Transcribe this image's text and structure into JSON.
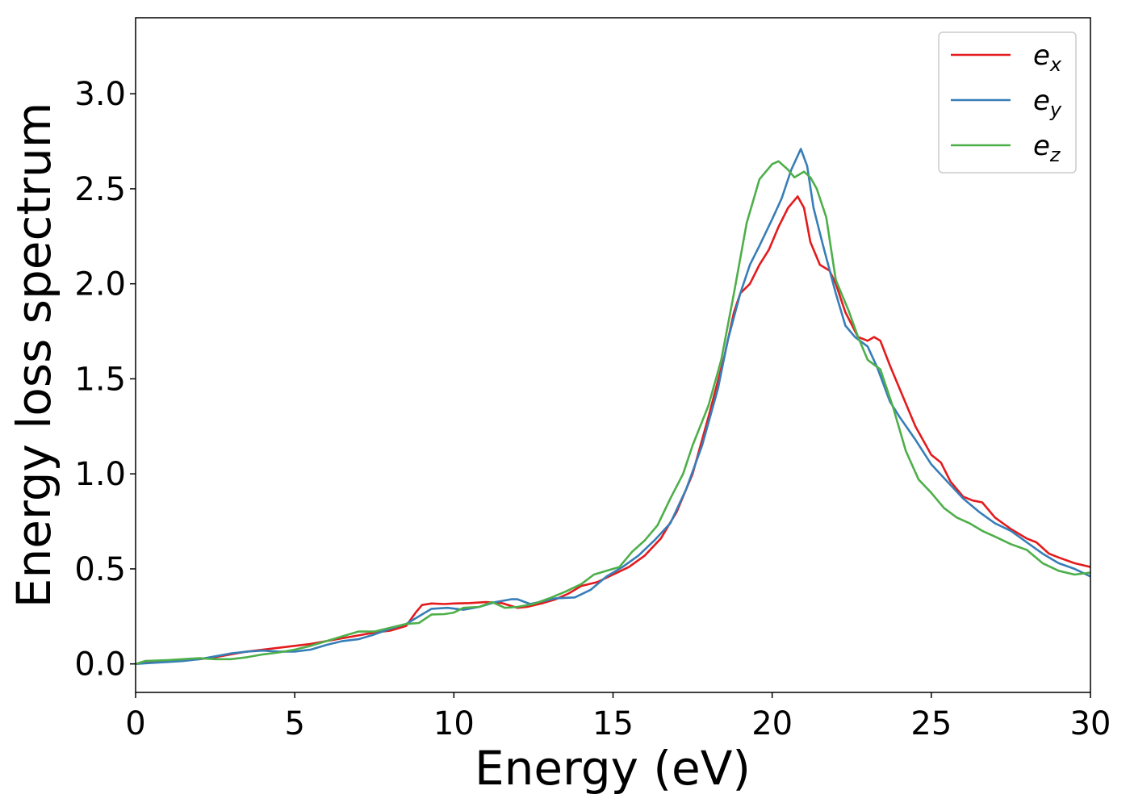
{
  "chart_data": {
    "type": "line",
    "title": "",
    "xlabel": "Energy (eV)",
    "ylabel": "Energy loss spectrum",
    "xlim": [
      0,
      30
    ],
    "ylim": [
      -0.15,
      3.4
    ],
    "xticks": [
      0,
      5,
      10,
      15,
      20,
      25,
      30
    ],
    "xtick_labels": [
      "0",
      "5",
      "10",
      "15",
      "20",
      "25",
      "30"
    ],
    "yticks": [
      0.0,
      0.5,
      1.0,
      1.5,
      2.0,
      2.5,
      3.0
    ],
    "ytick_labels": [
      "0.0",
      "0.5",
      "1.0",
      "1.5",
      "2.0",
      "2.5",
      "3.0"
    ],
    "grid": false,
    "legend_position": "top-right",
    "series": [
      {
        "name": "e",
        "subscript": "x",
        "color": "#e41a1c",
        "points": [
          [
            0,
            0
          ],
          [
            0.5,
            0.01
          ],
          [
            1,
            0.015
          ],
          [
            1.5,
            0.02
          ],
          [
            2,
            0.025
          ],
          [
            2.5,
            0.035
          ],
          [
            3,
            0.05
          ],
          [
            3.5,
            0.065
          ],
          [
            4,
            0.075
          ],
          [
            4.5,
            0.085
          ],
          [
            5,
            0.095
          ],
          [
            5.5,
            0.105
          ],
          [
            6,
            0.12
          ],
          [
            6.5,
            0.135
          ],
          [
            7,
            0.15
          ],
          [
            7.5,
            0.165
          ],
          [
            8,
            0.175
          ],
          [
            8.5,
            0.2
          ],
          [
            8.8,
            0.27
          ],
          [
            9,
            0.31
          ],
          [
            9.3,
            0.318
          ],
          [
            9.7,
            0.315
          ],
          [
            10,
            0.318
          ],
          [
            10.5,
            0.32
          ],
          [
            11,
            0.325
          ],
          [
            11.5,
            0.32
          ],
          [
            12,
            0.295
          ],
          [
            12.3,
            0.3
          ],
          [
            12.8,
            0.32
          ],
          [
            13.2,
            0.34
          ],
          [
            13.6,
            0.37
          ],
          [
            14,
            0.41
          ],
          [
            14.5,
            0.43
          ],
          [
            15,
            0.47
          ],
          [
            15.5,
            0.51
          ],
          [
            16,
            0.57
          ],
          [
            16.5,
            0.66
          ],
          [
            17,
            0.8
          ],
          [
            17.5,
            1.0
          ],
          [
            18,
            1.3
          ],
          [
            18.5,
            1.62
          ],
          [
            18.8,
            1.85
          ],
          [
            19,
            1.95
          ],
          [
            19.3,
            2.0
          ],
          [
            19.6,
            2.1
          ],
          [
            19.9,
            2.18
          ],
          [
            20.2,
            2.3
          ],
          [
            20.5,
            2.4
          ],
          [
            20.8,
            2.46
          ],
          [
            21,
            2.4
          ],
          [
            21.2,
            2.22
          ],
          [
            21.5,
            2.1
          ],
          [
            21.8,
            2.07
          ],
          [
            22,
            2.0
          ],
          [
            22.3,
            1.85
          ],
          [
            22.7,
            1.72
          ],
          [
            23,
            1.7
          ],
          [
            23.2,
            1.72
          ],
          [
            23.4,
            1.7
          ],
          [
            23.7,
            1.57
          ],
          [
            24,
            1.45
          ],
          [
            24.5,
            1.25
          ],
          [
            25,
            1.1
          ],
          [
            25.3,
            1.06
          ],
          [
            25.6,
            0.96
          ],
          [
            26,
            0.88
          ],
          [
            26.3,
            0.86
          ],
          [
            26.6,
            0.85
          ],
          [
            27,
            0.77
          ],
          [
            27.5,
            0.71
          ],
          [
            28,
            0.66
          ],
          [
            28.3,
            0.64
          ],
          [
            28.7,
            0.58
          ],
          [
            29,
            0.56
          ],
          [
            29.5,
            0.53
          ],
          [
            30,
            0.51
          ]
        ]
      },
      {
        "name": "e",
        "subscript": "y",
        "color": "#377eb8",
        "points": [
          [
            0,
            0
          ],
          [
            0.5,
            0.005
          ],
          [
            1,
            0.01
          ],
          [
            1.5,
            0.015
          ],
          [
            2,
            0.025
          ],
          [
            2.5,
            0.04
          ],
          [
            3,
            0.055
          ],
          [
            3.5,
            0.065
          ],
          [
            4,
            0.07
          ],
          [
            4.5,
            0.065
          ],
          [
            5,
            0.065
          ],
          [
            5.5,
            0.075
          ],
          [
            6,
            0.1
          ],
          [
            6.5,
            0.12
          ],
          [
            7,
            0.13
          ],
          [
            7.5,
            0.155
          ],
          [
            8,
            0.185
          ],
          [
            8.5,
            0.21
          ],
          [
            9,
            0.26
          ],
          [
            9.3,
            0.29
          ],
          [
            9.8,
            0.295
          ],
          [
            10.3,
            0.285
          ],
          [
            10.8,
            0.3
          ],
          [
            11.3,
            0.325
          ],
          [
            11.8,
            0.34
          ],
          [
            12,
            0.34
          ],
          [
            12.4,
            0.315
          ],
          [
            12.8,
            0.33
          ],
          [
            13.2,
            0.345
          ],
          [
            13.8,
            0.35
          ],
          [
            14.3,
            0.39
          ],
          [
            14.8,
            0.46
          ],
          [
            15.3,
            0.51
          ],
          [
            15.8,
            0.57
          ],
          [
            16.3,
            0.65
          ],
          [
            16.8,
            0.74
          ],
          [
            17.3,
            0.92
          ],
          [
            17.8,
            1.15
          ],
          [
            18.3,
            1.45
          ],
          [
            18.6,
            1.7
          ],
          [
            19,
            1.95
          ],
          [
            19.3,
            2.1
          ],
          [
            19.6,
            2.2
          ],
          [
            20,
            2.34
          ],
          [
            20.3,
            2.45
          ],
          [
            20.6,
            2.6
          ],
          [
            20.9,
            2.71
          ],
          [
            21.1,
            2.62
          ],
          [
            21.3,
            2.4
          ],
          [
            21.6,
            2.2
          ],
          [
            22,
            1.95
          ],
          [
            22.3,
            1.78
          ],
          [
            22.6,
            1.72
          ],
          [
            23,
            1.67
          ],
          [
            23.3,
            1.56
          ],
          [
            23.7,
            1.38
          ],
          [
            24,
            1.3
          ],
          [
            24.5,
            1.18
          ],
          [
            25,
            1.05
          ],
          [
            25.5,
            0.96
          ],
          [
            26,
            0.87
          ],
          [
            26.5,
            0.8
          ],
          [
            27,
            0.74
          ],
          [
            27.5,
            0.7
          ],
          [
            28,
            0.64
          ],
          [
            28.5,
            0.58
          ],
          [
            29,
            0.53
          ],
          [
            29.5,
            0.5
          ],
          [
            30,
            0.46
          ]
        ]
      },
      {
        "name": "e",
        "subscript": "z",
        "color": "#4daf4a",
        "points": [
          [
            0,
            0
          ],
          [
            0.3,
            0.015
          ],
          [
            1,
            0.02
          ],
          [
            1.5,
            0.025
          ],
          [
            2,
            0.03
          ],
          [
            2.5,
            0.025
          ],
          [
            3,
            0.025
          ],
          [
            3.5,
            0.035
          ],
          [
            4,
            0.05
          ],
          [
            4.5,
            0.06
          ],
          [
            5,
            0.075
          ],
          [
            5.5,
            0.095
          ],
          [
            6,
            0.12
          ],
          [
            6.5,
            0.145
          ],
          [
            7,
            0.17
          ],
          [
            7.5,
            0.17
          ],
          [
            8,
            0.19
          ],
          [
            8.5,
            0.21
          ],
          [
            8.9,
            0.215
          ],
          [
            9.3,
            0.26
          ],
          [
            9.7,
            0.262
          ],
          [
            10,
            0.27
          ],
          [
            10.3,
            0.295
          ],
          [
            10.8,
            0.3
          ],
          [
            11.2,
            0.325
          ],
          [
            11.6,
            0.295
          ],
          [
            12,
            0.3
          ],
          [
            12.5,
            0.315
          ],
          [
            13,
            0.345
          ],
          [
            13.5,
            0.38
          ],
          [
            14,
            0.42
          ],
          [
            14.4,
            0.47
          ],
          [
            14.8,
            0.49
          ],
          [
            15.2,
            0.51
          ],
          [
            15.6,
            0.59
          ],
          [
            16,
            0.65
          ],
          [
            16.4,
            0.73
          ],
          [
            16.8,
            0.87
          ],
          [
            17.2,
            1.0
          ],
          [
            17.5,
            1.15
          ],
          [
            18,
            1.36
          ],
          [
            18.4,
            1.6
          ],
          [
            18.8,
            1.95
          ],
          [
            19.2,
            2.32
          ],
          [
            19.6,
            2.55
          ],
          [
            20,
            2.63
          ],
          [
            20.2,
            2.645
          ],
          [
            20.5,
            2.6
          ],
          [
            20.7,
            2.56
          ],
          [
            21,
            2.59
          ],
          [
            21.2,
            2.56
          ],
          [
            21.4,
            2.5
          ],
          [
            21.7,
            2.35
          ],
          [
            22,
            2.02
          ],
          [
            22.4,
            1.86
          ],
          [
            22.7,
            1.72
          ],
          [
            23,
            1.6
          ],
          [
            23.4,
            1.55
          ],
          [
            23.8,
            1.35
          ],
          [
            24.2,
            1.12
          ],
          [
            24.6,
            0.97
          ],
          [
            25,
            0.9
          ],
          [
            25.4,
            0.82
          ],
          [
            25.8,
            0.77
          ],
          [
            26.2,
            0.74
          ],
          [
            26.6,
            0.7
          ],
          [
            27,
            0.67
          ],
          [
            27.5,
            0.63
          ],
          [
            28,
            0.6
          ],
          [
            28.5,
            0.53
          ],
          [
            29,
            0.49
          ],
          [
            29.5,
            0.47
          ],
          [
            30,
            0.48
          ]
        ]
      }
    ]
  }
}
